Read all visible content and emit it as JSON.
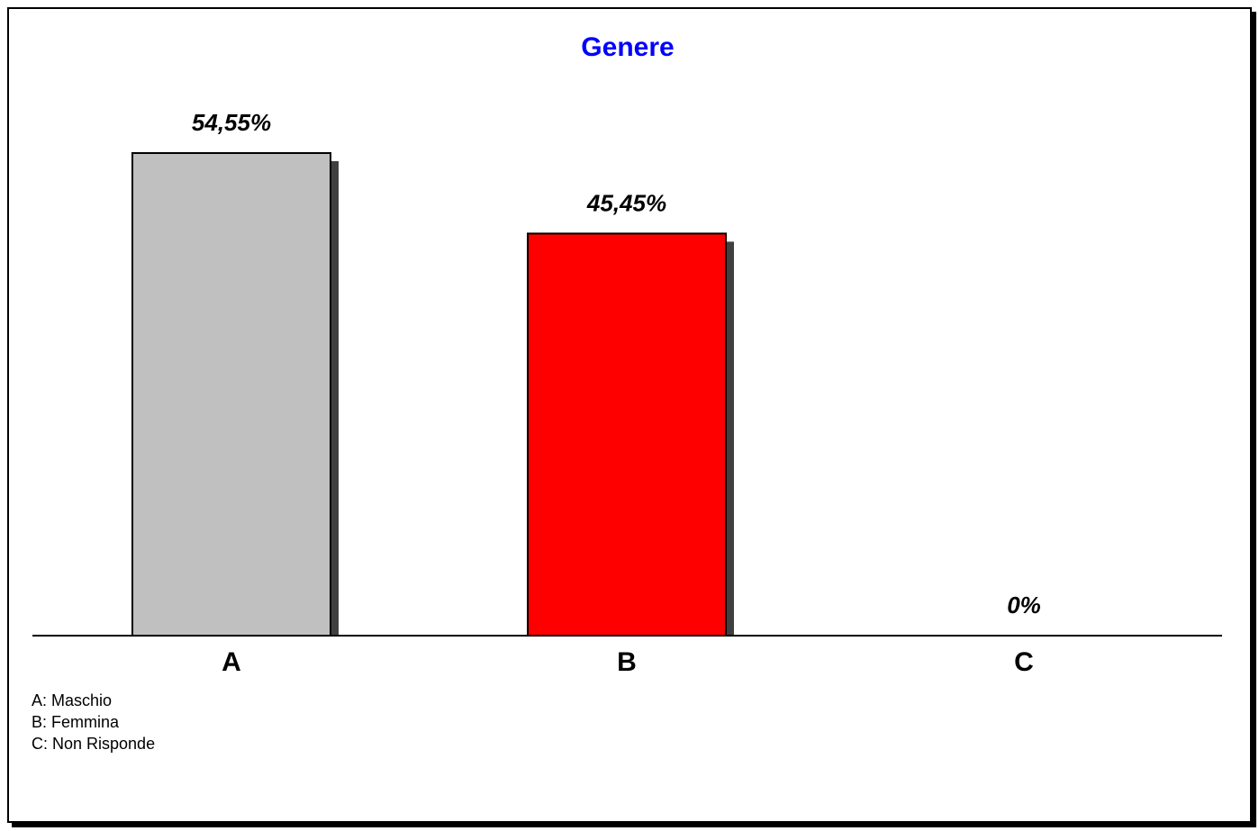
{
  "chart_data": {
    "type": "bar",
    "title": "Genere",
    "categories": [
      "A",
      "B",
      "C"
    ],
    "values": [
      54.55,
      45.45,
      0
    ],
    "value_labels": [
      "54,55%",
      "45,45%",
      "0%"
    ],
    "bar_colors": [
      "#c0c0c0",
      "#ff0000",
      "#ffffff"
    ],
    "ylim": [
      0,
      54.55
    ],
    "grid": false,
    "legend_entries": [
      {
        "text": "A: Maschio"
      },
      {
        "text": "B: Femmina"
      },
      {
        "text": "C: Non Risponde"
      }
    ]
  },
  "colors": {
    "title": "#0000ff",
    "shadow": "#404040",
    "outline": "#000000"
  }
}
